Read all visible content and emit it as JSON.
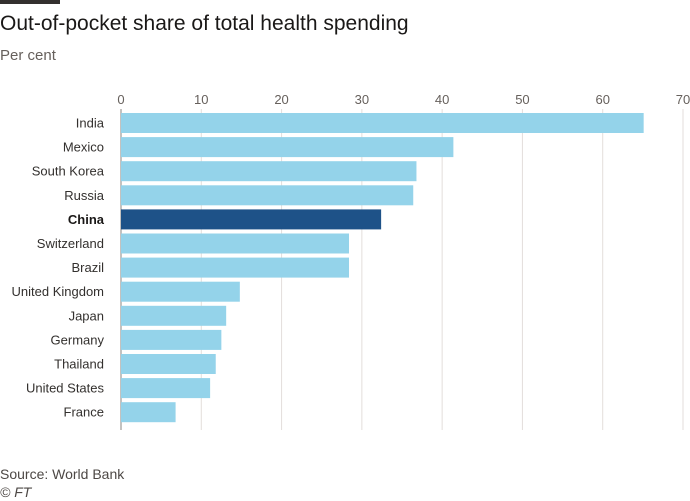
{
  "header": {
    "title": "Out-of-pocket share of total health spending",
    "subtitle": "Per cent"
  },
  "footer": {
    "source": "Source: World Bank",
    "credit": "© FT"
  },
  "colors": {
    "bar": "#94d3ea",
    "highlight": "#1e5288",
    "grid": "#e3dedb",
    "axis": "#8a8580"
  },
  "chart_data": {
    "type": "bar",
    "orientation": "horizontal",
    "title": "Out-of-pocket share of total health spending",
    "subtitle": "Per cent",
    "categories": [
      "India",
      "Mexico",
      "South Korea",
      "Russia",
      "China",
      "Switzerland",
      "Brazil",
      "United Kingdom",
      "Japan",
      "Germany",
      "Thailand",
      "United States",
      "France"
    ],
    "values": [
      65.1,
      41.4,
      36.8,
      36.4,
      32.4,
      28.4,
      28.4,
      14.8,
      13.1,
      12.5,
      11.8,
      11.1,
      6.8
    ],
    "highlight": "China",
    "xlim": [
      0,
      70
    ],
    "xticks": [
      0,
      10,
      20,
      30,
      40,
      50,
      60,
      70
    ],
    "xaxis_position": "top",
    "grid": true,
    "source": "Source: World Bank"
  }
}
